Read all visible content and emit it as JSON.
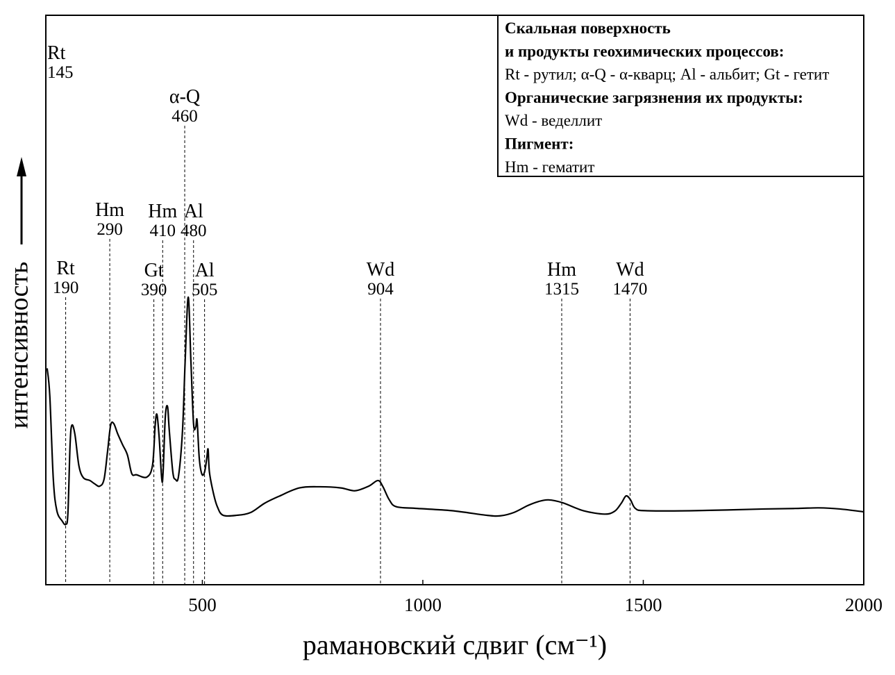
{
  "chart_data": {
    "type": "line",
    "xlabel": "рамановский сдвиг (см⁻¹)",
    "ylabel": "интенсивность",
    "xlim": [
      145,
      2000
    ],
    "xticks": [
      500,
      1000,
      1500,
      2000
    ],
    "ylim": [
      0,
      100
    ],
    "color": "#000000",
    "x": [
      148,
      154,
      162,
      170,
      182,
      190,
      195,
      200,
      204,
      211,
      220,
      230,
      245,
      256,
      267,
      277,
      285,
      292,
      299,
      308,
      319,
      330,
      340,
      351,
      374,
      387,
      393,
      397,
      402,
      408,
      411,
      416,
      421,
      425,
      433,
      439,
      446,
      455,
      461,
      468,
      474,
      480,
      485,
      488,
      493,
      499,
      505,
      510,
      513,
      516,
      525,
      534,
      547,
      579,
      610,
      641,
      673,
      720,
      767,
      814,
      846,
      877,
      898,
      909,
      924,
      940,
      987,
      1066,
      1144,
      1176,
      1207,
      1238,
      1262,
      1285,
      1317,
      1364,
      1412,
      1435,
      1450,
      1461,
      1471,
      1482,
      1505,
      1615,
      1773,
      1851,
      1898,
      1946,
      2000
    ],
    "values": [
      38.0,
      33.2,
      18.5,
      13.0,
      11.2,
      10.6,
      12.4,
      24.6,
      28.0,
      26.4,
      20.9,
      18.8,
      18.3,
      17.7,
      17.3,
      18.5,
      23.4,
      28.0,
      28.3,
      26.5,
      24.6,
      22.8,
      19.5,
      19.3,
      18.9,
      21.0,
      28.0,
      29.9,
      25.9,
      18.5,
      19.8,
      29.5,
      31.3,
      27.1,
      19.8,
      18.5,
      19.1,
      27.1,
      39.3,
      50.5,
      39.3,
      28.3,
      27.7,
      28.9,
      22.2,
      19.4,
      19.8,
      22.2,
      23.8,
      19.8,
      16.1,
      13.7,
      12.2,
      12.2,
      12.7,
      14.3,
      15.5,
      17.0,
      17.2,
      17.0,
      16.5,
      17.3,
      18.3,
      17.3,
      14.9,
      13.7,
      13.4,
      13.0,
      12.2,
      12.1,
      12.7,
      13.9,
      14.6,
      14.9,
      14.4,
      13.0,
      12.4,
      12.9,
      14.3,
      15.6,
      14.9,
      13.4,
      13.0,
      13.0,
      13.3,
      13.4,
      13.5,
      13.3,
      12.8
    ],
    "annotations": [
      {
        "label": "Rt",
        "value": 145
      },
      {
        "label": "Rt",
        "value": 190
      },
      {
        "label": "Hm",
        "value": 290
      },
      {
        "label": "Gt",
        "value": 390
      },
      {
        "label": "Hm",
        "value": 410
      },
      {
        "label": "α-Q",
        "value": 460
      },
      {
        "label": "Al",
        "value": 480
      },
      {
        "label": "Al",
        "value": 505
      },
      {
        "label": "Wd",
        "value": 904
      },
      {
        "label": "Hm",
        "value": 1315
      },
      {
        "label": "Wd",
        "value": 1470
      }
    ],
    "legend": [
      {
        "text": "Скальная поверхность",
        "bold": true
      },
      {
        "text": "и продукты геохимических процессов:",
        "bold": true
      },
      {
        "text": "Rt - рутил; α-Q - α-кварц; Al - альбит; Gt - гетит",
        "bold": false
      },
      {
        "text": "Органические загрязнения их продукты:",
        "bold": true
      },
      {
        "text": "Wd - веделлит",
        "bold": false
      },
      {
        "text": "Пигмент:",
        "bold": true
      },
      {
        "text": "Hm - гематит",
        "bold": false
      }
    ]
  }
}
